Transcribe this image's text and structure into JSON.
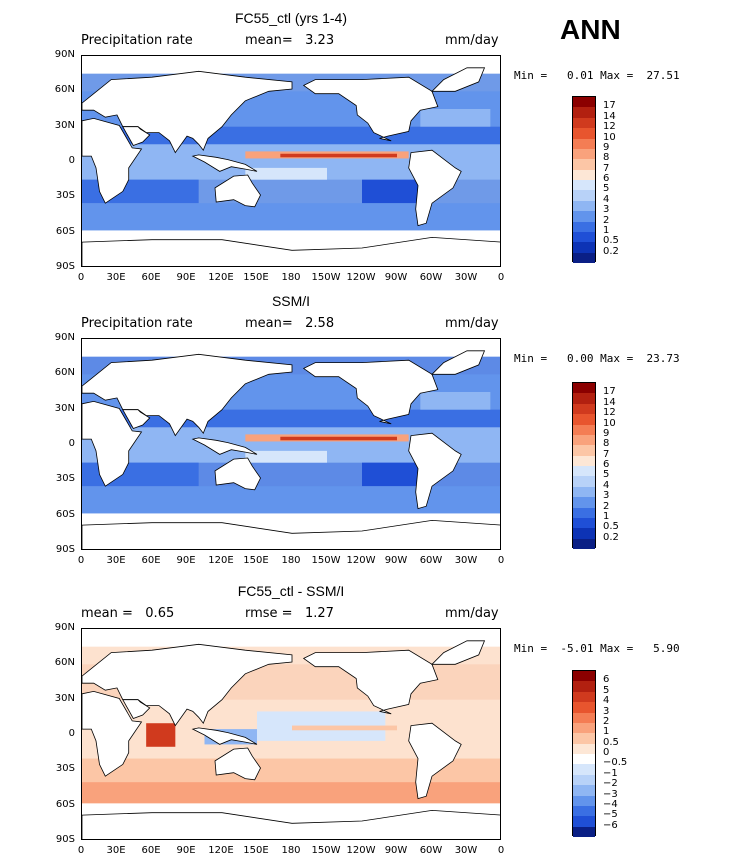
{
  "page_title": "ANN",
  "panels": [
    {
      "title": "FC55_ctl (yrs 1-4)",
      "left_label": "Precipitation rate",
      "stat1": "mean=   3.23",
      "stat2": "",
      "units": "mm/day",
      "minmax": "Min =   0.01 Max =  27.51",
      "colorbar": {
        "labels": [
          "17",
          "14",
          "12",
          "10",
          "9",
          "8",
          "7",
          "6",
          "5",
          "4",
          "3",
          "2",
          "1",
          "0.5",
          "0.2"
        ],
        "colors": [
          "#8b0000",
          "#b22010",
          "#d03a1e",
          "#e8552e",
          "#f47d54",
          "#f9a27c",
          "#fcc6a6",
          "#fde7d6",
          "#d6e6fb",
          "#b8d2f8",
          "#8fb6f3",
          "#6294ec",
          "#3a6fe3",
          "#1f4fd6",
          "#0d33b5",
          "#0a1f85"
        ]
      },
      "bg": "#6f9ae8"
    },
    {
      "title": "SSM/I",
      "left_label": "Precipitation rate",
      "stat1": "mean=   2.58",
      "stat2": "",
      "units": "mm/day",
      "minmax": "Min =   0.00 Max =  23.73",
      "colorbar": {
        "labels": [
          "17",
          "14",
          "12",
          "10",
          "9",
          "8",
          "7",
          "6",
          "5",
          "4",
          "3",
          "2",
          "1",
          "0.5",
          "0.2"
        ],
        "colors": [
          "#8b0000",
          "#b22010",
          "#d03a1e",
          "#e8552e",
          "#f47d54",
          "#f9a27c",
          "#fcc6a6",
          "#fde7d6",
          "#d6e6fb",
          "#b8d2f8",
          "#8fb6f3",
          "#6294ec",
          "#3a6fe3",
          "#1f4fd6",
          "#0d33b5",
          "#0a1f85"
        ]
      },
      "bg": "#5d8ae6"
    },
    {
      "title": "FC55_ctl - SSM/I",
      "left_label": "mean =   0.65",
      "stat1": "rmse =   1.27",
      "stat2": "",
      "units": "mm/day",
      "minmax": "Min =  -5.01 Max =   5.90",
      "colorbar": {
        "labels": [
          "6",
          "5",
          "4",
          "3",
          "2",
          "1",
          "0.5",
          "0",
          "−0.5",
          "−1",
          "−2",
          "−3",
          "−4",
          "−5",
          "−6"
        ],
        "colors": [
          "#8b0000",
          "#b22010",
          "#d03a1e",
          "#e8552e",
          "#f47d54",
          "#f9a27c",
          "#fcc6a6",
          "#fde7d6",
          "#ffffff",
          "#d6e6fb",
          "#b8d2f8",
          "#8fb6f3",
          "#6294ec",
          "#3a6fe3",
          "#1f4fd6",
          "#0a1f85"
        ]
      },
      "bg": "#fde2cf"
    }
  ],
  "lat_labels": [
    "90N",
    "60N",
    "30N",
    "0",
    "30S",
    "60S",
    "90S"
  ],
  "lon_labels": [
    "0",
    "30E",
    "60E",
    "90E",
    "120E",
    "150E",
    "180",
    "150W",
    "120W",
    "90W",
    "60W",
    "30W",
    "0"
  ]
}
